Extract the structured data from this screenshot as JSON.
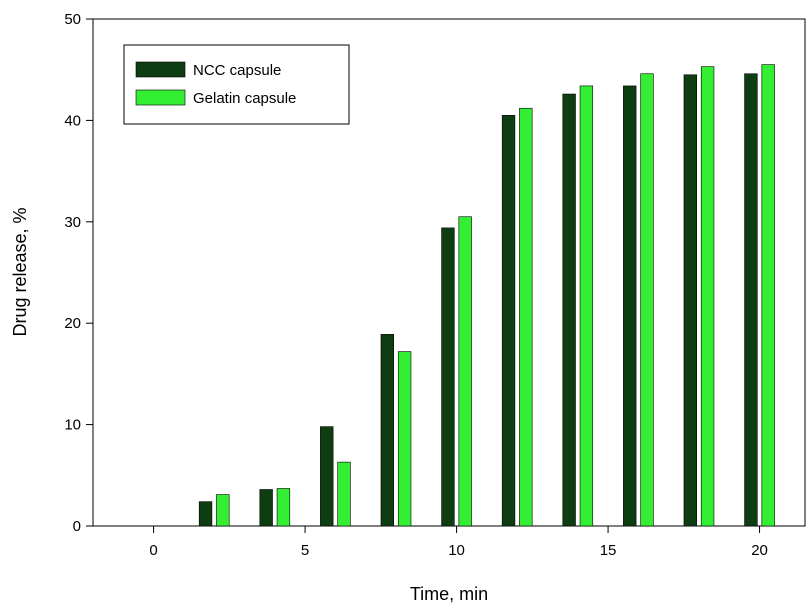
{
  "chart_data": {
    "type": "bar",
    "title": "",
    "xlabel": "Time, min",
    "ylabel": "Drug release, %",
    "xlim": [
      -2,
      21.5
    ],
    "ylim": [
      0,
      50
    ],
    "x_ticks": [
      0,
      5,
      10,
      15,
      20
    ],
    "y_ticks": [
      0,
      10,
      20,
      30,
      40,
      50
    ],
    "x": [
      2,
      4,
      6,
      8,
      10,
      12,
      14,
      16,
      18,
      20
    ],
    "series": [
      {
        "name": "NCC capsule",
        "color": "#0f3d12",
        "values": [
          2.4,
          3.6,
          9.8,
          18.9,
          29.4,
          40.5,
          42.6,
          43.4,
          44.5,
          44.6
        ]
      },
      {
        "name": "Gelatin capsule",
        "color": "#33ee33",
        "values": [
          3.1,
          3.7,
          6.3,
          17.2,
          30.5,
          41.2,
          43.4,
          44.6,
          45.3,
          45.5
        ]
      }
    ],
    "legend_position": "top-left",
    "grid": false
  }
}
